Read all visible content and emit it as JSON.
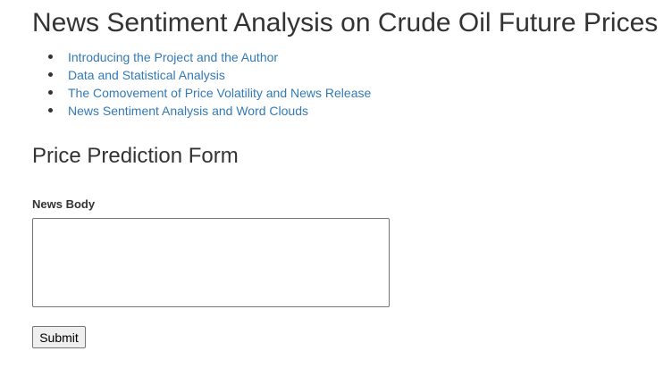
{
  "header": {
    "title": "News Sentiment Analysis on Crude Oil Future Prices"
  },
  "nav": {
    "links": [
      {
        "label": "Introducing the Project and the Author"
      },
      {
        "label": "Data and Statistical Analysis"
      },
      {
        "label": "The Comovement of Price Volatility and News Release"
      },
      {
        "label": "News Sentiment Analysis and Word Clouds"
      }
    ]
  },
  "form": {
    "title": "Price Prediction Form",
    "news_body_label": "News Body",
    "news_body_value": "",
    "submit_label": "Submit"
  },
  "colors": {
    "link": "#337ab7",
    "text": "#333333"
  }
}
